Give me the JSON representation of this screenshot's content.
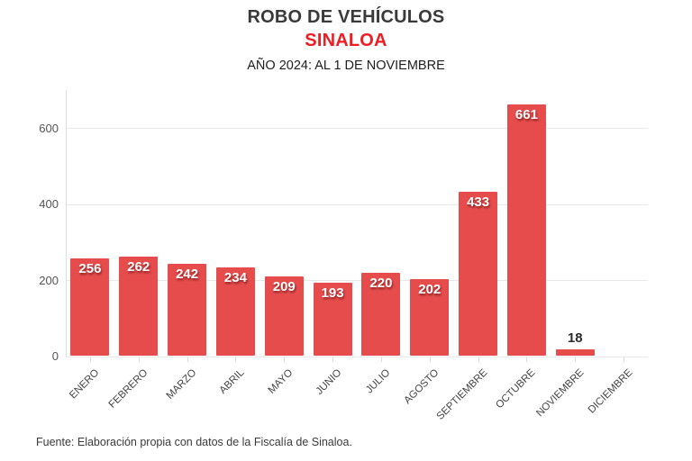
{
  "header": {
    "title": "ROBO DE VEHÍCULOS",
    "subtitle_region": "SINALOA",
    "subtitle_period": "AÑO 2024: AL 1 DE NOVIEMBRE"
  },
  "footer": {
    "source": "Fuente: Elaboración propia con datos de la Fiscalía de Sinaloa."
  },
  "colors": {
    "bar": "#e64c4c",
    "accent_red": "#ee1d23",
    "title_gray": "#3a3a3a",
    "gridline": "#e9e9e9",
    "axis_text": "#555555",
    "value_label_inside": "#ffffff",
    "value_label_outside": "#2b2b2b"
  },
  "chart_data": {
    "type": "bar",
    "title": "ROBO DE VEHÍCULOS",
    "subtitle": "SINALOA — AÑO 2024: AL 1 DE NOVIEMBRE",
    "categories": [
      "ENERO",
      "FEBRERO",
      "MARZO",
      "ABRIL",
      "MAYO",
      "JUNIO",
      "JULIO",
      "AGOSTO",
      "SEPTIEMBRE",
      "OCTUBRE",
      "NOVIEMBRE",
      "DICIEMBRE"
    ],
    "values": [
      256,
      262,
      242,
      234,
      209,
      193,
      220,
      202,
      433,
      661,
      18,
      null
    ],
    "xlabel": "",
    "ylabel": "",
    "ylim": [
      0,
      700
    ],
    "yticks": [
      0,
      200,
      400,
      600
    ],
    "grid": true,
    "legend": false,
    "bar_color": "#e64c4c",
    "x_label_rotation": -45,
    "source": "Fuente: Elaboración propia con datos de la Fiscalía de Sinaloa."
  }
}
